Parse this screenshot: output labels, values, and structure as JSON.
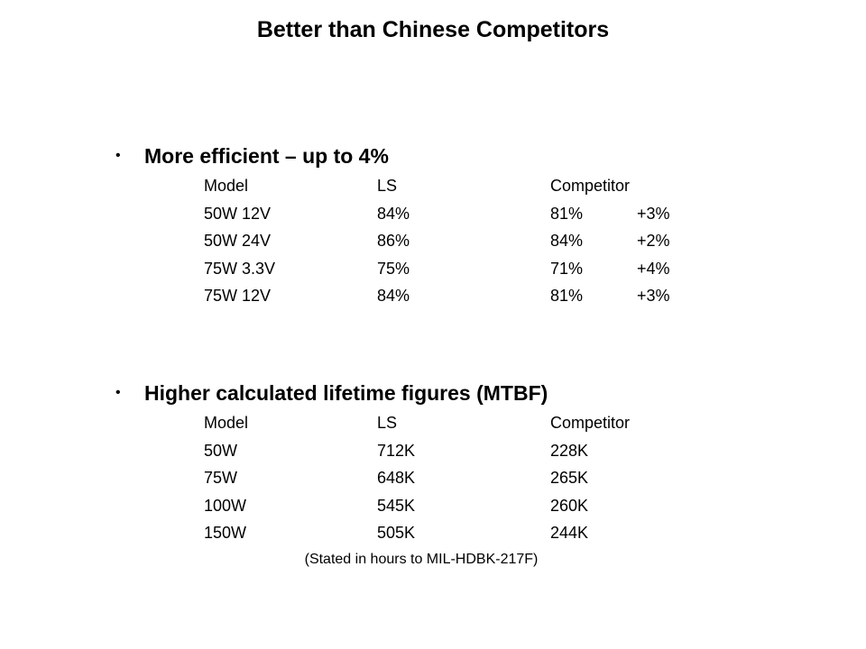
{
  "title": "Better than Chinese Competitors",
  "bullet_glyph": "•",
  "sections": [
    {
      "heading": "More efficient – up to 4%",
      "header": [
        "Model",
        "LS",
        "Competitor",
        ""
      ],
      "rows": [
        [
          "50W 12V",
          "84%",
          "81%",
          "+3%"
        ],
        [
          "50W 24V",
          "86%",
          "84%",
          "+2%"
        ],
        [
          "75W 3.3V",
          "75%",
          "71%",
          "+4%"
        ],
        [
          "75W 12V",
          "84%",
          "81%",
          "+3%"
        ]
      ]
    },
    {
      "heading": "Higher calculated lifetime figures (MTBF)",
      "header": [
        "Model",
        "LS",
        "Competitor"
      ],
      "rows": [
        [
          "50W",
          "712K",
          "228K"
        ],
        [
          "75W",
          "648K",
          "265K"
        ],
        [
          "100W",
          "545K",
          "260K"
        ],
        [
          "150W",
          "505K",
          "244K"
        ]
      ]
    }
  ],
  "footnote": "(Stated in hours to MIL-HDBK-217F)"
}
